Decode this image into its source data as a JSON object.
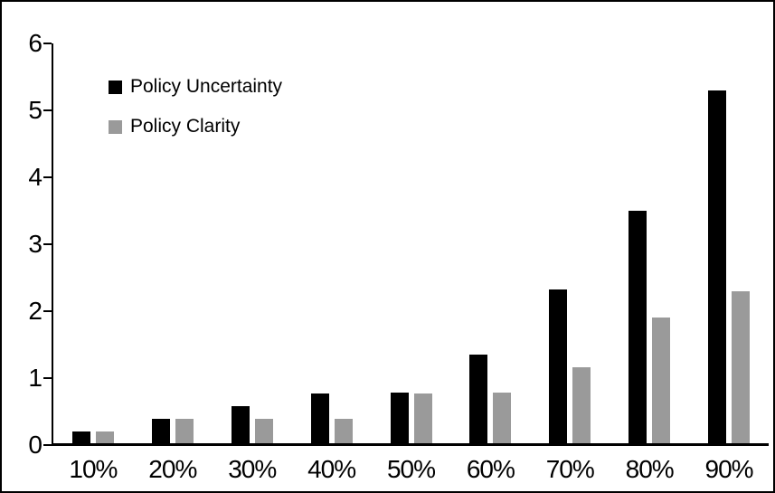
{
  "chart_data": {
    "type": "bar",
    "title": "",
    "xlabel": "",
    "ylabel": "",
    "categories": [
      "10%",
      "20%",
      "30%",
      "40%",
      "50%",
      "60%",
      "70%",
      "80%",
      "90%"
    ],
    "series": [
      {
        "name": "Policy Uncertainty",
        "color": "#000000",
        "values": [
          0.2,
          0.39,
          0.58,
          0.77,
          0.78,
          1.35,
          2.32,
          3.5,
          5.3
        ]
      },
      {
        "name": "Policy Clarity",
        "color": "#9A9A9A",
        "values": [
          0.2,
          0.39,
          0.39,
          0.39,
          0.77,
          0.78,
          1.16,
          1.9,
          2.3
        ]
      }
    ],
    "ylim": [
      0,
      6
    ],
    "y_ticks": [
      "0",
      "1",
      "2",
      "3",
      "4",
      "5",
      "6"
    ],
    "grid": "off",
    "legend_position": "top-left-inside"
  },
  "frame": {
    "background": "#FFFFFF",
    "border_color": "#000000",
    "axis_color": "#000000"
  }
}
